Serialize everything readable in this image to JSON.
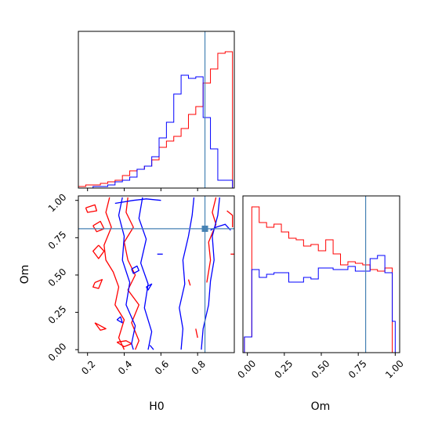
{
  "chart_data": [
    {
      "type": "histogram",
      "panel": "H0 marginal (top-left)",
      "xlim": [
        0.15,
        1.0
      ],
      "bin_edges": [
        0.15,
        0.19,
        0.23,
        0.27,
        0.31,
        0.35,
        0.39,
        0.43,
        0.47,
        0.51,
        0.55,
        0.59,
        0.63,
        0.67,
        0.71,
        0.75,
        0.79,
        0.83,
        0.87,
        0.91,
        0.95,
        0.99
      ],
      "series": [
        {
          "color": "#ff0000",
          "values": [
            0.01,
            0.02,
            0.02,
            0.03,
            0.04,
            0.05,
            0.08,
            0.11,
            0.12,
            0.14,
            0.18,
            0.26,
            0.3,
            0.33,
            0.38,
            0.47,
            0.52,
            0.67,
            0.76,
            0.86,
            0.87
          ]
        },
        {
          "color": "#0000ff",
          "values": [
            0.0,
            0.0,
            0.01,
            0.01,
            0.02,
            0.04,
            0.05,
            0.07,
            0.12,
            0.14,
            0.2,
            0.32,
            0.42,
            0.6,
            0.72,
            0.7,
            0.71,
            0.45,
            0.25,
            0.05,
            0.05
          ]
        }
      ],
      "truth_line_x": 0.84,
      "y_ticks_visible": false
    },
    {
      "type": "contour",
      "panel": "H0 vs Om joint (bottom-left)",
      "xlabel": "H0",
      "ylabel": "Om",
      "xlim": [
        0.15,
        1.0
      ],
      "ylim": [
        -0.02,
        1.03
      ],
      "xticks": [
        "0.2",
        "0.4",
        "0.6",
        "0.8"
      ],
      "xtick_values": [
        0.2,
        0.4,
        0.6,
        0.8
      ],
      "yticks": [
        "0.00",
        "0.25",
        "0.50",
        "0.75",
        "1.00"
      ],
      "ytick_values": [
        0.0,
        0.25,
        0.5,
        0.75,
        1.0
      ],
      "series": [
        {
          "color": "#ff0000",
          "contours": [
            [
              [
                0.32,
                1.02
              ],
              [
                0.3,
                0.92
              ],
              [
                0.33,
                0.82
              ],
              [
                0.29,
                0.7
              ],
              [
                0.3,
                0.6
              ],
              [
                0.34,
                0.52
              ],
              [
                0.37,
                0.42
              ],
              [
                0.35,
                0.3
              ],
              [
                0.4,
                0.2
              ],
              [
                0.37,
                0.08
              ],
              [
                0.4,
                0.0
              ]
            ],
            [
              [
                0.42,
                1.02
              ],
              [
                0.41,
                0.92
              ],
              [
                0.45,
                0.82
              ],
              [
                0.4,
                0.72
              ],
              [
                0.42,
                0.6
              ],
              [
                0.46,
                0.5
              ],
              [
                0.42,
                0.4
              ],
              [
                0.48,
                0.3
              ],
              [
                0.44,
                0.18
              ],
              [
                0.48,
                0.06
              ],
              [
                0.46,
                0.0
              ]
            ],
            [
              [
                0.19,
                0.95
              ],
              [
                0.24,
                0.97
              ],
              [
                0.25,
                0.93
              ],
              [
                0.2,
                0.92
              ],
              [
                0.19,
                0.95
              ]
            ],
            [
              [
                0.23,
                0.83
              ],
              [
                0.27,
                0.86
              ],
              [
                0.29,
                0.81
              ],
              [
                0.25,
                0.79
              ],
              [
                0.23,
                0.83
              ]
            ],
            [
              [
                0.26,
                0.7
              ],
              [
                0.29,
                0.66
              ],
              [
                0.26,
                0.61
              ],
              [
                0.23,
                0.66
              ],
              [
                0.26,
                0.7
              ]
            ],
            [
              [
                0.24,
                0.45
              ],
              [
                0.28,
                0.47
              ],
              [
                0.26,
                0.41
              ],
              [
                0.23,
                0.42
              ],
              [
                0.24,
                0.45
              ]
            ],
            [
              [
                0.24,
                0.18
              ],
              [
                0.27,
                0.16
              ],
              [
                0.3,
                0.14
              ],
              [
                0.27,
                0.13
              ],
              [
                0.24,
                0.18
              ]
            ],
            [
              [
                0.36,
                0.05
              ],
              [
                0.41,
                0.06
              ],
              [
                0.44,
                0.04
              ],
              [
                0.4,
                0.02
              ],
              [
                0.36,
                0.05
              ]
            ],
            [
              [
                0.9,
                1.02
              ],
              [
                0.88,
                0.92
              ],
              [
                0.9,
                0.84
              ],
              [
                0.86,
                0.72
              ],
              [
                0.87,
                0.6
              ],
              [
                0.85,
                0.45
              ]
            ],
            [
              [
                0.96,
                0.93
              ],
              [
                0.99,
                0.9
              ],
              [
                0.99,
                0.82
              ]
            ],
            [
              [
                0.75,
                0.47
              ],
              [
                0.76,
                0.43
              ]
            ],
            [
              [
                0.79,
                0.14
              ],
              [
                0.8,
                0.08
              ]
            ],
            [
              [
                0.98,
                0.64
              ],
              [
                1.0,
                0.64
              ]
            ]
          ]
        },
        {
          "color": "#0000ff",
          "contours": [
            [
              [
                0.39,
                1.02
              ],
              [
                0.37,
                0.9
              ],
              [
                0.4,
                0.76
              ],
              [
                0.39,
                0.6
              ],
              [
                0.43,
                0.45
              ],
              [
                0.41,
                0.3
              ],
              [
                0.46,
                0.16
              ],
              [
                0.44,
                0.04
              ],
              [
                0.45,
                0.0
              ]
            ],
            [
              [
                0.5,
                1.02
              ],
              [
                0.48,
                0.88
              ],
              [
                0.52,
                0.74
              ],
              [
                0.49,
                0.58
              ],
              [
                0.53,
                0.44
              ],
              [
                0.51,
                0.28
              ],
              [
                0.55,
                0.12
              ],
              [
                0.53,
                0.0
              ]
            ],
            [
              [
                0.71,
                0.0
              ],
              [
                0.72,
                0.14
              ],
              [
                0.7,
                0.28
              ],
              [
                0.73,
                0.44
              ],
              [
                0.72,
                0.6
              ],
              [
                0.75,
                0.76
              ],
              [
                0.77,
                0.9
              ],
              [
                0.78,
                1.02
              ]
            ],
            [
              [
                0.82,
                0.0
              ],
              [
                0.83,
                0.14
              ],
              [
                0.86,
                0.3
              ],
              [
                0.87,
                0.46
              ],
              [
                0.89,
                0.6
              ],
              [
                0.88,
                0.76
              ],
              [
                0.91,
                0.9
              ],
              [
                0.92,
                1.02
              ]
            ],
            [
              [
                0.35,
                0.98
              ],
              [
                0.45,
                1.0
              ],
              [
                0.52,
                1.01
              ],
              [
                0.6,
                1.0
              ]
            ],
            [
              [
                0.44,
                0.54
              ],
              [
                0.47,
                0.56
              ],
              [
                0.48,
                0.53
              ],
              [
                0.45,
                0.51
              ],
              [
                0.44,
                0.54
              ]
            ],
            [
              [
                0.52,
                0.42
              ],
              [
                0.55,
                0.44
              ],
              [
                0.53,
                0.4
              ],
              [
                0.52,
                0.42
              ]
            ],
            [
              [
                0.36,
                0.2
              ],
              [
                0.38,
                0.22
              ],
              [
                0.39,
                0.18
              ],
              [
                0.36,
                0.2
              ]
            ],
            [
              [
                0.54,
                0.03
              ],
              [
                0.56,
                0.0
              ]
            ],
            [
              [
                0.58,
                0.64
              ],
              [
                0.61,
                0.64
              ]
            ],
            [
              [
                0.87,
                0.8
              ],
              [
                0.9,
                0.82
              ],
              [
                0.95,
                0.84
              ],
              [
                0.98,
                0.8
              ]
            ]
          ]
        }
      ],
      "truth_point": [
        0.84,
        0.81
      ],
      "truth_line_x": 0.84,
      "truth_line_y": 0.81
    },
    {
      "type": "histogram",
      "panel": "Om marginal (bottom-right)",
      "xlabel": "Om",
      "xlim": [
        -0.03,
        1.03
      ],
      "xticks": [
        "0.00",
        "0.25",
        "0.50",
        "0.75",
        "1.00"
      ],
      "xtick_values": [
        0.0,
        0.25,
        0.5,
        0.75,
        1.0
      ],
      "bin_edges": [
        -0.02,
        0.03,
        0.08,
        0.13,
        0.18,
        0.23,
        0.28,
        0.33,
        0.38,
        0.43,
        0.48,
        0.53,
        0.58,
        0.63,
        0.68,
        0.73,
        0.78,
        0.83,
        0.88,
        0.93,
        0.98,
        1.0
      ],
      "series": [
        {
          "color": "#ff0000",
          "values": [
            0.1,
            0.93,
            0.83,
            0.8,
            0.82,
            0.77,
            0.73,
            0.72,
            0.68,
            0.69,
            0.65,
            0.72,
            0.63,
            0.56,
            0.58,
            0.57,
            0.56,
            0.53,
            0.52,
            0.54,
            0.0
          ]
        },
        {
          "color": "#0000ff",
          "values": [
            0.1,
            0.53,
            0.48,
            0.5,
            0.51,
            0.51,
            0.45,
            0.45,
            0.48,
            0.47,
            0.54,
            0.54,
            0.53,
            0.53,
            0.55,
            0.52,
            0.52,
            0.6,
            0.62,
            0.51,
            0.2
          ]
        }
      ],
      "truth_line_x": 0.8,
      "y_ticks_visible": false
    }
  ],
  "colors": {
    "series_a": "#ff0000",
    "series_b": "#0000ff",
    "truth": "#4682b4",
    "axes": "#000000"
  }
}
